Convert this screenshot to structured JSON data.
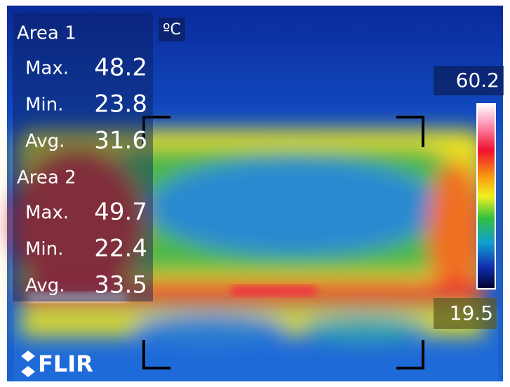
{
  "unit": "ºC",
  "areas": [
    {
      "label": "Area 1",
      "stats": [
        {
          "label": "Max.",
          "value": 48.2
        },
        {
          "label": "Min.",
          "value": 23.8
        },
        {
          "label": "Avg.",
          "value": 31.6
        }
      ]
    },
    {
      "label": "Area 2",
      "stats": [
        {
          "label": "Max.",
          "value": 49.7
        },
        {
          "label": "Min.",
          "value": 22.4
        },
        {
          "label": "Avg.",
          "value": 33.5
        }
      ]
    }
  ],
  "scale": {
    "max": 60.2,
    "min": 19.5
  },
  "brand": "FLIR"
}
